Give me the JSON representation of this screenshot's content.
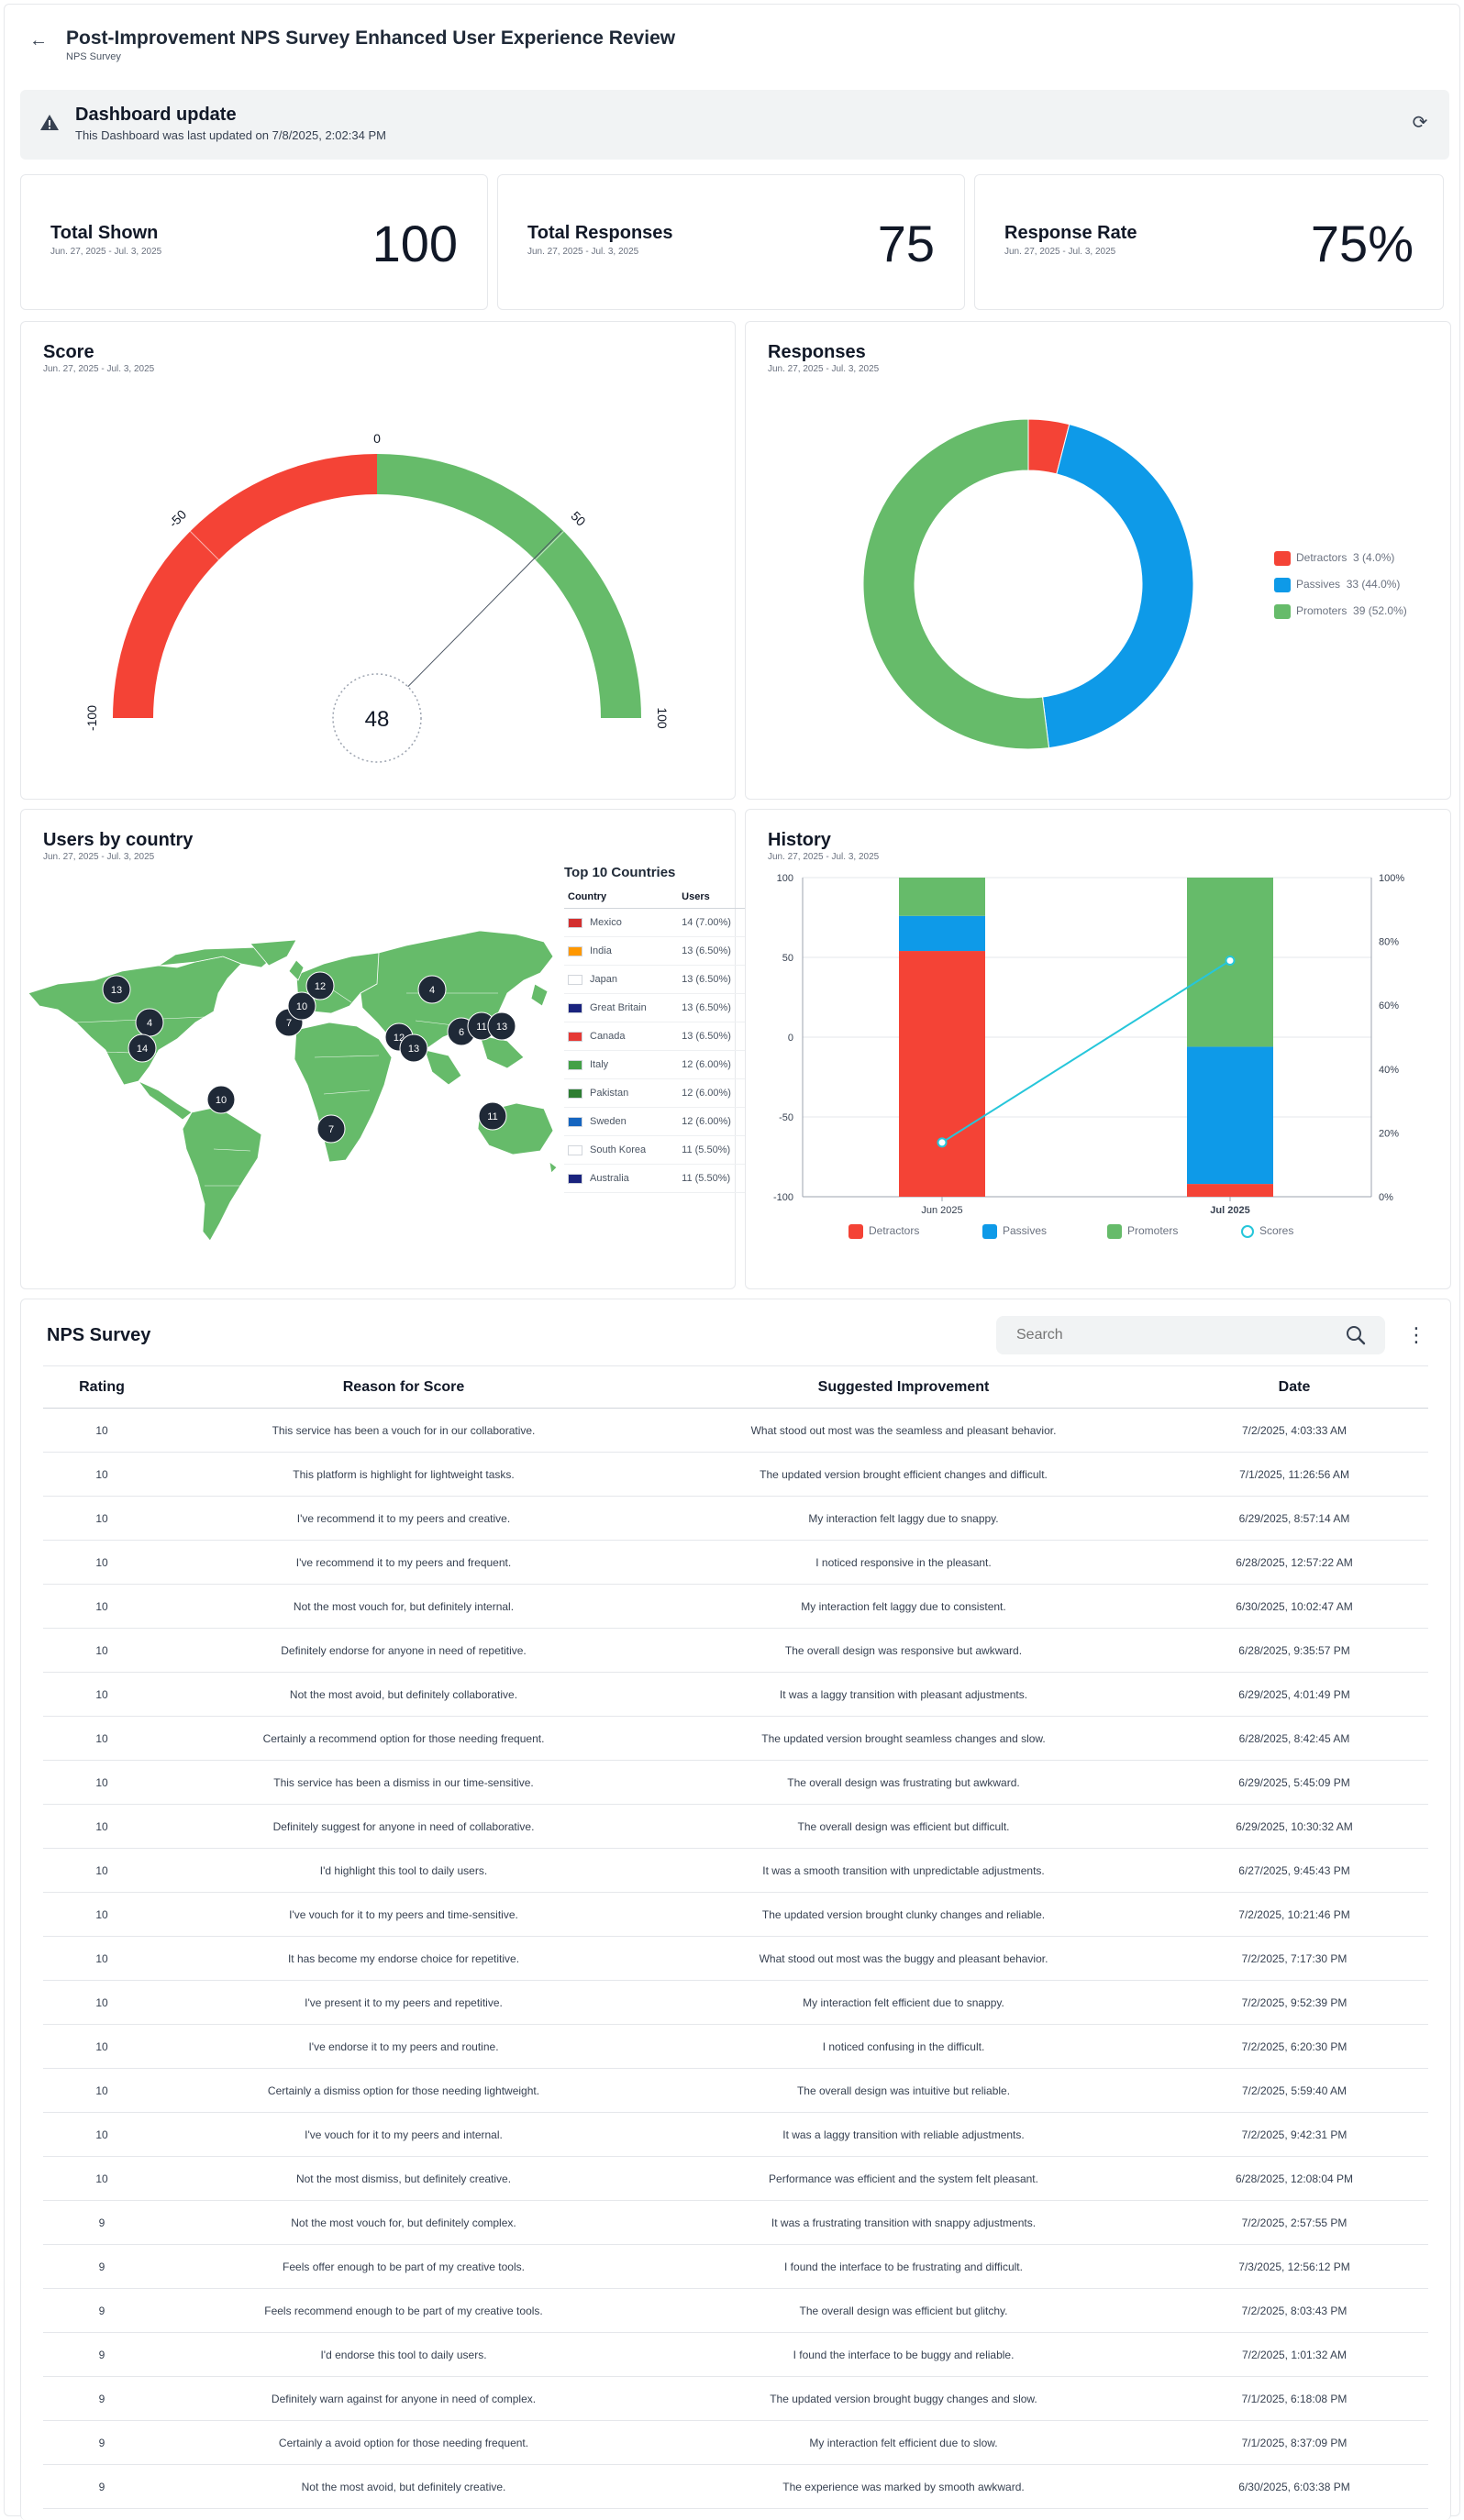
{
  "header": {
    "title": "Post-Improvement NPS Survey Enhanced User Experience Review",
    "subtitle": "NPS Survey"
  },
  "banner": {
    "title": "Dashboard update",
    "text": "This Dashboard was last updated on 7/8/2025, 2:02:34 PM"
  },
  "stats": [
    {
      "label": "Total Shown",
      "range": "Jun. 27, 2025 - Jul. 3, 2025",
      "value": "100"
    },
    {
      "label": "Total Responses",
      "range": "Jun. 27, 2025 - Jul. 3, 2025",
      "value": "75"
    },
    {
      "label": "Response Rate",
      "range": "Jun. 27, 2025 - Jul. 3, 2025",
      "value": "75%"
    }
  ],
  "score": {
    "title": "Score",
    "range": "Jun. 27, 2025 - Jul. 3, 2025",
    "value": "48",
    "ticks": [
      "-100",
      "-50",
      "0",
      "50",
      "100"
    ]
  },
  "responses": {
    "title": "Responses",
    "range": "Jun. 27, 2025 - Jul. 3, 2025",
    "legend": [
      {
        "label": "Detractors",
        "detail": "3 (4.0%)",
        "color": "#f44336"
      },
      {
        "label": "Passives",
        "detail": "33 (44.0%)",
        "color": "#0e9ae8"
      },
      {
        "label": "Promoters",
        "detail": "39 (52.0%)",
        "color": "#66bb6a"
      }
    ]
  },
  "countries": {
    "title": "Users by country",
    "range": "Jun. 27, 2025 - Jul. 3, 2025",
    "table_title": "Top 10 Countries",
    "col_country": "Country",
    "col_users": "Users",
    "rows": [
      {
        "country": "Mexico",
        "users": "14 (7.00%)"
      },
      {
        "country": "India",
        "users": "13 (6.50%)"
      },
      {
        "country": "Japan",
        "users": "13 (6.50%)"
      },
      {
        "country": "Great Britain",
        "users": "13 (6.50%)"
      },
      {
        "country": "Canada",
        "users": "13 (6.50%)"
      },
      {
        "country": "Italy",
        "users": "12 (6.00%)"
      },
      {
        "country": "Pakistan",
        "users": "12 (6.00%)"
      },
      {
        "country": "Sweden",
        "users": "12 (6.00%)"
      },
      {
        "country": "South Korea",
        "users": "11 (5.50%)"
      },
      {
        "country": "Australia",
        "users": "11 (5.50%)"
      }
    ],
    "markers": [
      "13",
      "4",
      "14",
      "10",
      "7",
      "10",
      "12",
      "4",
      "12",
      "13",
      "6",
      "11",
      "13",
      "11",
      "7"
    ]
  },
  "history": {
    "title": "History",
    "range": "Jun. 27, 2025 - Jul. 3, 2025",
    "legend": [
      "Detractors",
      "Passives",
      "Promoters",
      "Scores"
    ]
  },
  "chart_data": [
    {
      "type": "pie",
      "title": "Responses",
      "categories": [
        "Detractors",
        "Passives",
        "Promoters"
      ],
      "values": [
        3,
        33,
        39
      ],
      "percent": [
        4.0,
        44.0,
        52.0
      ],
      "colors": [
        "#f44336",
        "#0e9ae8",
        "#66bb6a"
      ]
    },
    {
      "type": "bar",
      "title": "History",
      "categories": [
        "Jun 2025",
        "Jul 2025"
      ],
      "series": [
        {
          "name": "Detractors",
          "values": [
            77,
            4
          ],
          "color": "#f44336"
        },
        {
          "name": "Passives",
          "values": [
            11,
            43
          ],
          "color": "#0e9ae8"
        },
        {
          "name": "Promoters",
          "values": [
            12,
            53
          ],
          "color": "#66bb6a"
        },
        {
          "name": "Scores",
          "values": [
            -66,
            48
          ],
          "color": "#26c6da"
        }
      ],
      "y_left_ticks": [
        "100",
        "50",
        "0",
        "-50",
        "-100"
      ],
      "y_right_ticks": [
        "100%",
        "80%",
        "60%",
        "40%",
        "20%",
        "0%"
      ],
      "ylim": [
        -100,
        100
      ],
      "legend_position": "bottom"
    }
  ],
  "survey": {
    "title": "NPS Survey",
    "search_placeholder": "Search",
    "columns": [
      "Rating",
      "Reason for Score",
      "Suggested Improvement",
      "Date"
    ],
    "rows": [
      [
        "10",
        "This service has been a vouch for in our collaborative.",
        "What stood out most was the seamless and pleasant behavior.",
        "7/2/2025, 4:03:33 AM"
      ],
      [
        "10",
        "This platform is highlight for lightweight tasks.",
        "The updated version brought efficient changes and difficult.",
        "7/1/2025, 11:26:56 AM"
      ],
      [
        "10",
        "I've recommend it to my peers and creative.",
        "My interaction felt laggy due to snappy.",
        "6/29/2025, 8:57:14 AM"
      ],
      [
        "10",
        "I've recommend it to my peers and frequent.",
        "I noticed responsive in the pleasant.",
        "6/28/2025, 12:57:22 AM"
      ],
      [
        "10",
        "Not the most vouch for, but definitely internal.",
        "My interaction felt laggy due to consistent.",
        "6/30/2025, 10:02:47 AM"
      ],
      [
        "10",
        "Definitely endorse for anyone in need of repetitive.",
        "The overall design was responsive but awkward.",
        "6/28/2025, 9:35:57 PM"
      ],
      [
        "10",
        "Not the most avoid, but definitely collaborative.",
        "It was a laggy transition with pleasant adjustments.",
        "6/29/2025, 4:01:49 PM"
      ],
      [
        "10",
        "Certainly a recommend option for those needing frequent.",
        "The updated version brought seamless changes and slow.",
        "6/28/2025, 8:42:45 AM"
      ],
      [
        "10",
        "This service has been a dismiss in our time-sensitive.",
        "The overall design was frustrating but awkward.",
        "6/29/2025, 5:45:09 PM"
      ],
      [
        "10",
        "Definitely suggest for anyone in need of collaborative.",
        "The overall design was efficient but difficult.",
        "6/29/2025, 10:30:32 AM"
      ],
      [
        "10",
        "I'd highlight this tool to daily users.",
        "It was a smooth transition with unpredictable adjustments.",
        "6/27/2025, 9:45:43 PM"
      ],
      [
        "10",
        "I've vouch for it to my peers and time-sensitive.",
        "The updated version brought clunky changes and reliable.",
        "7/2/2025, 10:21:46 PM"
      ],
      [
        "10",
        "It has become my endorse choice for repetitive.",
        "What stood out most was the buggy and pleasant behavior.",
        "7/2/2025, 7:17:30 PM"
      ],
      [
        "10",
        "I've present it to my peers and repetitive.",
        "My interaction felt efficient due to snappy.",
        "7/2/2025, 9:52:39 PM"
      ],
      [
        "10",
        "I've endorse it to my peers and routine.",
        "I noticed confusing in the difficult.",
        "7/2/2025, 6:20:30 PM"
      ],
      [
        "10",
        "Certainly a dismiss option for those needing lightweight.",
        "The overall design was intuitive but reliable.",
        "7/2/2025, 5:59:40 AM"
      ],
      [
        "10",
        "I've vouch for it to my peers and internal.",
        "It was a laggy transition with reliable adjustments.",
        "7/2/2025, 9:42:31 PM"
      ],
      [
        "10",
        "Not the most dismiss, but definitely creative.",
        "Performance was efficient and the system felt pleasant.",
        "6/28/2025, 12:08:04 PM"
      ],
      [
        "9",
        "Not the most vouch for, but definitely complex.",
        "It was a frustrating transition with snappy adjustments.",
        "7/2/2025, 2:57:55 PM"
      ],
      [
        "9",
        "Feels offer enough to be part of my creative tools.",
        "I found the interface to be frustrating and difficult.",
        "7/3/2025, 12:56:12 PM"
      ],
      [
        "9",
        "Feels recommend enough to be part of my creative tools.",
        "The overall design was efficient but glitchy.",
        "7/2/2025, 8:03:43 PM"
      ],
      [
        "9",
        "I'd endorse this tool to daily users.",
        "I found the interface to be buggy and reliable.",
        "7/2/2025, 1:01:32 AM"
      ],
      [
        "9",
        "Definitely warn against for anyone in need of complex.",
        "The updated version brought buggy changes and slow.",
        "7/1/2025, 6:18:08 PM"
      ],
      [
        "9",
        "Certainly a avoid option for those needing frequent.",
        "My interaction felt efficient due to slow.",
        "7/1/2025, 8:37:09 PM"
      ],
      [
        "9",
        "Not the most avoid, but definitely creative.",
        "The experience was marked by smooth awkward.",
        "6/30/2025, 6:03:38 PM"
      ]
    ]
  }
}
